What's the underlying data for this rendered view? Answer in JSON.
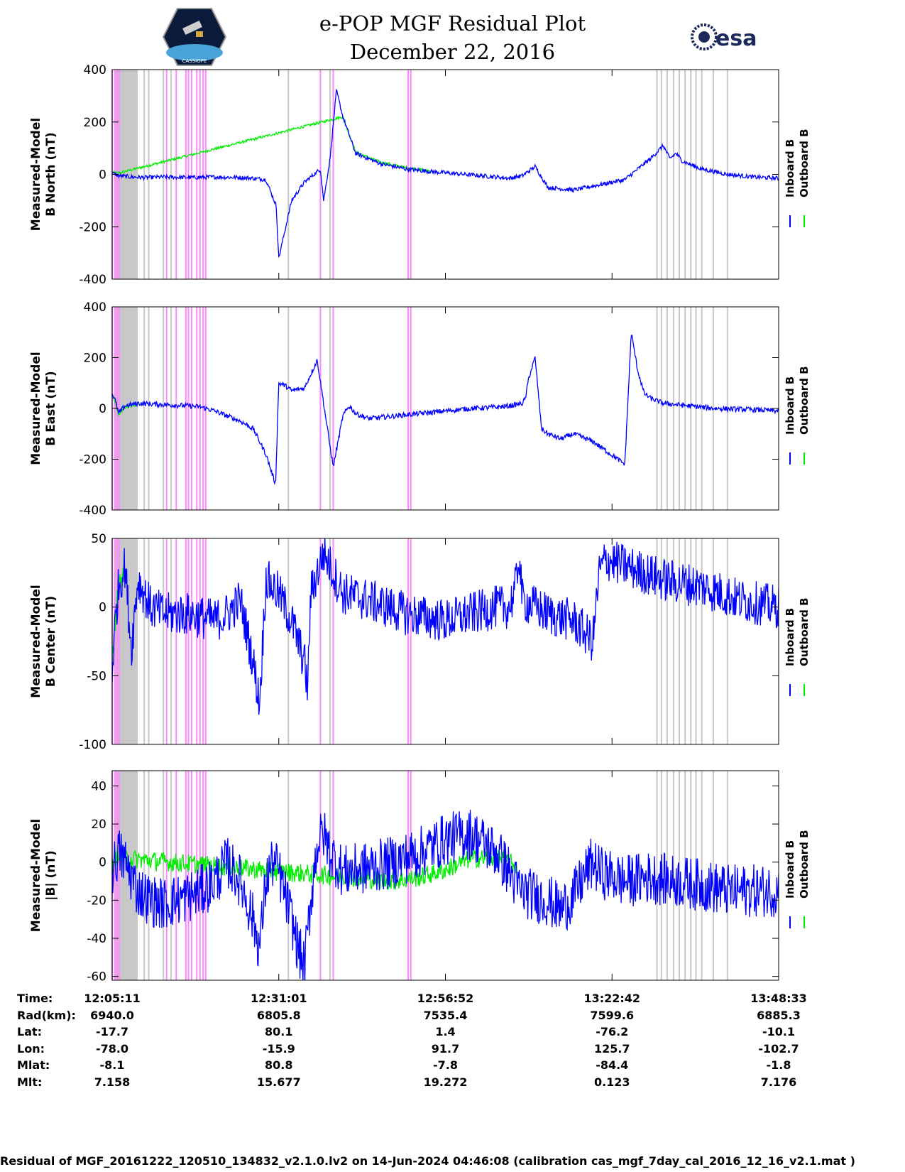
{
  "header": {
    "title": "e-POP MGF Residual Plot",
    "date": "December 22, 2016",
    "logo_left": "CASSIOPE",
    "logo_right": "esa"
  },
  "colors": {
    "inboard": "#0000ff",
    "outboard": "#00ee00",
    "gray_band": "#c8c8c8",
    "pink_band": "#ff88ff"
  },
  "chart_data": [
    {
      "type": "line",
      "ylabel": [
        "Measured-Model",
        "B North (nT)"
      ],
      "ylim": [
        -400,
        400
      ],
      "yticks": [
        -400,
        -200,
        0,
        200,
        400
      ],
      "legend": [
        "Inboard B",
        "Outboard B"
      ],
      "series": [
        {
          "name": "Inboard B",
          "color": "#0000ff",
          "x": [
            0,
            1,
            3,
            5,
            8,
            12,
            16,
            20,
            22,
            24,
            25.6,
            26,
            28,
            30,
            31,
            32,
            32.5,
            33,
            34,
            35,
            36,
            38,
            42,
            46,
            50,
            55,
            60,
            62,
            64,
            66,
            68,
            72,
            76,
            80,
            84,
            86,
            87,
            88,
            89,
            90,
            92,
            94,
            96,
            100,
            104
          ],
          "y": [
            5,
            -5,
            -10,
            -12,
            -10,
            -12,
            -10,
            -12,
            -15,
            -20,
            -120,
            -320,
            -100,
            -30,
            -10,
            10,
            20,
            -100,
            60,
            320,
            220,
            80,
            40,
            20,
            10,
            0,
            -10,
            -15,
            -5,
            30,
            -50,
            -60,
            -40,
            -20,
            60,
            110,
            60,
            80,
            50,
            40,
            20,
            10,
            0,
            -10,
            -15
          ],
          "noise": 8
        },
        {
          "name": "Outboard B",
          "color": "#00ee00",
          "x": [
            0,
            1,
            36,
            38,
            42,
            46,
            50
          ],
          "y": [
            8,
            5,
            220,
            85,
            45,
            25,
            12
          ],
          "noise": 5
        }
      ]
    },
    {
      "type": "line",
      "ylabel": [
        "Measured-Model",
        "B East (nT)"
      ],
      "ylim": [
        -400,
        400
      ],
      "yticks": [
        -400,
        -200,
        0,
        200,
        400
      ],
      "legend": [
        "Inboard B",
        "Outboard B"
      ],
      "series": [
        {
          "name": "Inboard B",
          "color": "#0000ff",
          "x": [
            0,
            0.5,
            1,
            2,
            4,
            8,
            12,
            14,
            16,
            18,
            20,
            22,
            24,
            25.5,
            26,
            27,
            28,
            30,
            32,
            34,
            34.5,
            36,
            37,
            38,
            40,
            44,
            48,
            52,
            56,
            60,
            62,
            64,
            64.5,
            65,
            66,
            67,
            68,
            70,
            72,
            75,
            80,
            81,
            82,
            83,
            84,
            86,
            88,
            90,
            94,
            100,
            104
          ],
          "y": [
            60,
            30,
            -20,
            10,
            20,
            15,
            10,
            5,
            -10,
            -30,
            -50,
            -80,
            -180,
            -300,
            100,
            90,
            70,
            80,
            190,
            -150,
            -230,
            -30,
            10,
            -20,
            -40,
            -30,
            -20,
            -10,
            0,
            5,
            10,
            20,
            40,
            120,
            200,
            -80,
            -100,
            -120,
            -100,
            -130,
            -220,
            300,
            150,
            60,
            40,
            20,
            15,
            10,
            0,
            -5,
            -10
          ],
          "noise": 10
        },
        {
          "name": "Outboard B",
          "color": "#00ee00",
          "x": [
            0,
            0.5,
            1,
            2,
            4
          ],
          "y": [
            55,
            25,
            -25,
            5,
            18
          ],
          "noise": 6
        }
      ]
    },
    {
      "type": "line",
      "ylabel": [
        "Measured-Model",
        "B Center (nT)"
      ],
      "ylim": [
        -100,
        50
      ],
      "yticks": [
        -100,
        -50,
        0,
        50
      ],
      "legend": [
        "Inboard B",
        "Outboard B"
      ],
      "series": [
        {
          "name": "Inboard B",
          "color": "#0000ff",
          "x": [
            0,
            0.5,
            1,
            2,
            3,
            4,
            6,
            8,
            12,
            16,
            18,
            20,
            22,
            23,
            24,
            26,
            28,
            30,
            30.5,
            31,
            33,
            34,
            35,
            36,
            40,
            46,
            52,
            56,
            60,
            62,
            63,
            63.5,
            64,
            68,
            72,
            74,
            75,
            76,
            77,
            80,
            86,
            92,
            98,
            104
          ],
          "y": [
            -45,
            -10,
            15,
            30,
            -30,
            20,
            0,
            -5,
            -5,
            -10,
            -5,
            5,
            -40,
            -70,
            20,
            10,
            -10,
            -40,
            -60,
            10,
            40,
            30,
            20,
            10,
            5,
            -5,
            -10,
            -5,
            0,
            0,
            15,
            40,
            5,
            -5,
            -10,
            -20,
            -25,
            25,
            35,
            30,
            20,
            15,
            5,
            0
          ],
          "noise": 16
        },
        {
          "name": "Outboard B",
          "color": "#00ee00",
          "x": [
            0,
            0.5,
            1,
            2
          ],
          "y": [
            -40,
            -10,
            15,
            25
          ],
          "noise": 8
        }
      ]
    },
    {
      "type": "line",
      "ylabel": [
        "Measured-Model",
        "|B| (nT)"
      ],
      "ylim": [
        -62,
        48
      ],
      "yticks": [
        -60,
        -40,
        -20,
        0,
        20,
        40
      ],
      "legend": [
        "Inboard B",
        "Outboard B"
      ],
      "series": [
        {
          "name": "Inboard B",
          "color": "#0000ff",
          "x": [
            0,
            1,
            2,
            4,
            6,
            8,
            10,
            12,
            14,
            16,
            18,
            20,
            22,
            23,
            24,
            25,
            26,
            28,
            29,
            30,
            31,
            32,
            33,
            34,
            36,
            40,
            44,
            48,
            52,
            56,
            60,
            62,
            63,
            64,
            66,
            68,
            70,
            72,
            74,
            75,
            76,
            80,
            84,
            88,
            92,
            96,
            100,
            104
          ],
          "y": [
            -5,
            5,
            0,
            -15,
            -20,
            -22,
            -20,
            -18,
            -15,
            -10,
            0,
            -10,
            -30,
            -45,
            -10,
            0,
            -5,
            -30,
            -45,
            -55,
            -20,
            10,
            15,
            5,
            -5,
            -3,
            0,
            5,
            12,
            15,
            5,
            -5,
            -12,
            -15,
            -18,
            -20,
            -25,
            -18,
            -5,
            0,
            -5,
            -10,
            -8,
            -10,
            -12,
            -15,
            -15,
            -15
          ],
          "noise": 14
        },
        {
          "name": "Outboard B",
          "color": "#00ee00",
          "x": [
            0,
            1,
            2,
            44,
            48,
            52,
            56,
            61,
            63
          ],
          "y": [
            -3,
            6,
            2,
            -10,
            -8,
            -4,
            2,
            2,
            -2
          ],
          "noise": 5
        }
      ]
    }
  ],
  "time_axis": {
    "ticks": [
      {
        "time": "12:05:11",
        "rad": "6940.0",
        "lat": "-17.7",
        "lon": "-78.0",
        "mlat": "-8.1",
        "mlt": "7.158"
      },
      {
        "time": "12:31:01",
        "rad": "6805.8",
        "lat": "80.1",
        "lon": "-15.9",
        "mlat": "80.8",
        "mlt": "15.677"
      },
      {
        "time": "12:56:52",
        "rad": "7535.4",
        "lat": "1.4",
        "lon": "91.7",
        "mlat": "-7.8",
        "mlt": "19.272"
      },
      {
        "time": "13:22:42",
        "rad": "7599.6",
        "lat": "-76.2",
        "lon": "125.7",
        "mlat": "-84.4",
        "mlt": "0.123"
      },
      {
        "time": "13:48:33",
        "rad": "6885.3",
        "lat": "-10.1",
        "lon": "-102.7",
        "mlat": "-1.8",
        "mlt": "7.176"
      }
    ],
    "row_labels": [
      "Time:",
      "Rad(km):",
      "Lat:",
      "Lon:",
      "Mlat:",
      "Mlt:"
    ]
  },
  "bands": {
    "x_range": [
      0,
      104
    ],
    "gray": [
      [
        0.5,
        4
      ],
      5,
      5.7,
      8,
      9.2,
      27.5,
      34,
      85,
      85.7,
      86.6,
      87.6,
      88.5,
      89.4,
      90.3,
      91.1,
      92,
      93.8,
      96
    ],
    "pink": [
      0,
      0.4,
      0.8,
      1.1,
      8.5,
      10,
      11.5,
      11.9,
      12.4,
      13.2,
      13.7,
      14.2,
      14.6,
      32.5,
      34.5,
      46.2,
      46.6
    ]
  },
  "footer": "Residual of MGF_20161222_120510_134832_v2.1.0.lv2 on 14-Jun-2024 04:46:08 (calibration cas_mgf_7day_cal_2016_12_16_v2.1.mat )"
}
